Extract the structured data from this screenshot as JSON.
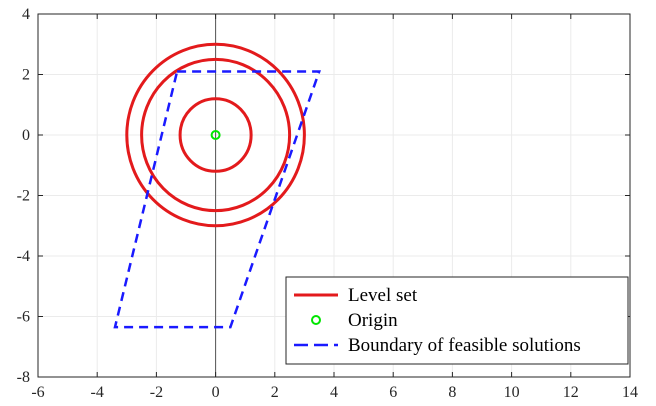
{
  "chart_data": {
    "type": "line",
    "title": "",
    "xlabel": "",
    "ylabel": "",
    "xlim": [
      -6,
      14
    ],
    "ylim": [
      -8,
      4
    ],
    "xticks": [
      -6,
      -4,
      -2,
      0,
      2,
      4,
      6,
      8,
      10,
      12,
      14
    ],
    "yticks": [
      4,
      2,
      0,
      -2,
      -4,
      -6,
      -8
    ],
    "grid": true,
    "legend_position": "bottom-right",
    "series": [
      {
        "name": "Level set",
        "kind": "circles",
        "color": "#e31a1c",
        "center": [
          0,
          0
        ],
        "radii": [
          1.2,
          2.5,
          3.0
        ],
        "gap_angle_deg": 0
      },
      {
        "name": "Origin",
        "kind": "marker",
        "color": "#00e600",
        "points": [
          [
            0,
            0
          ]
        ]
      },
      {
        "name": "Boundary of feasible solutions",
        "kind": "dashed-polygon",
        "color": "#1a1aff",
        "points": [
          [
            -1.3,
            2.1
          ],
          [
            3.5,
            2.1
          ],
          [
            0.5,
            -6.35
          ],
          [
            -3.4,
            -6.35
          ],
          [
            -1.3,
            2.1
          ]
        ]
      }
    ],
    "reference_lines": {
      "vertical_x": 0
    }
  }
}
